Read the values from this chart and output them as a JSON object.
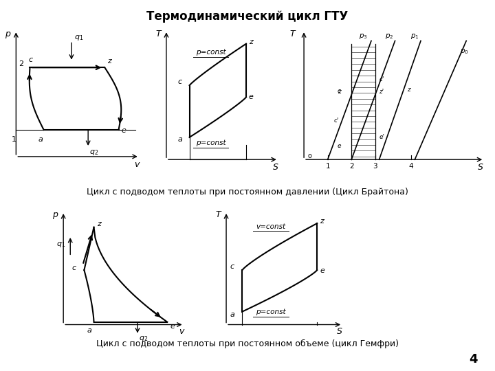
{
  "title": "Термодинамический цикл ГТУ",
  "caption1": "Цикл с подводом теплоты при постоянном давлении (Цикл Брайтона)",
  "caption2": "Цикл с подводом теплоты при постоянном объеме (цикл Гемфри)",
  "page_number": "4",
  "bg_color": "#ffffff",
  "line_color": "#000000"
}
